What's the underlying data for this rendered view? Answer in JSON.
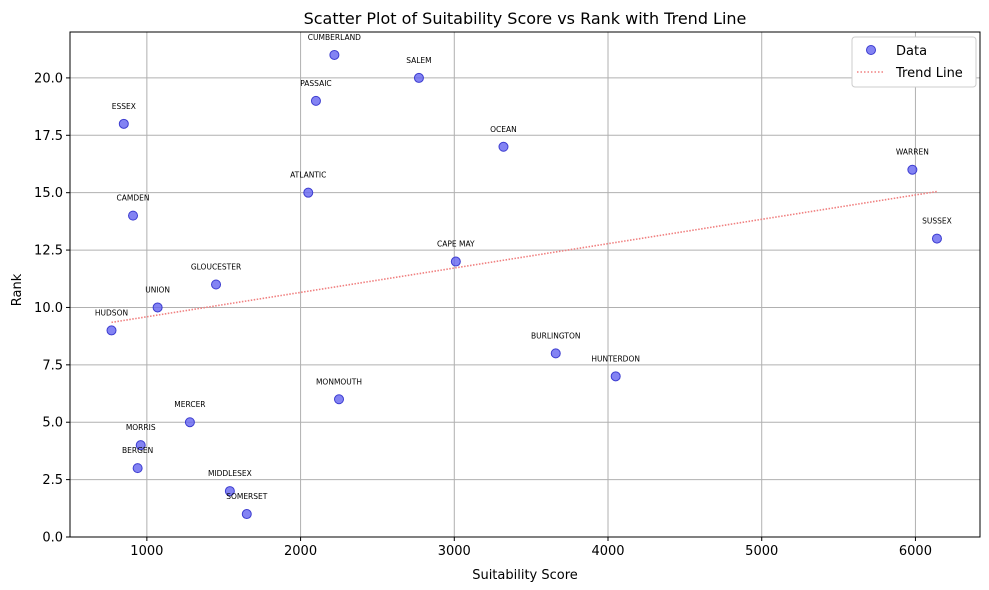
{
  "chart_data": {
    "type": "scatter",
    "title": "Scatter Plot of Suitability Score vs Rank with Trend Line",
    "xlabel": "Suitability Score",
    "ylabel": "Rank",
    "xlim": [
      500,
      6420
    ],
    "ylim": [
      0,
      22
    ],
    "xticks": [
      1000,
      2000,
      3000,
      4000,
      5000,
      6000
    ],
    "yticks": [
      0.0,
      2.5,
      5.0,
      7.5,
      10.0,
      12.5,
      15.0,
      17.5,
      20.0
    ],
    "ytick_labels": [
      "0.0",
      "2.5",
      "5.0",
      "7.5",
      "10.0",
      "12.5",
      "15.0",
      "17.5",
      "20.0"
    ],
    "grid": true,
    "legend_position": "top-right",
    "series": [
      {
        "name": "Data",
        "kind": "scatter",
        "color": "#6464f0",
        "points": [
          {
            "label": "CUMBERLAND",
            "x": 2220,
            "y": 21
          },
          {
            "label": "SALEM",
            "x": 2770,
            "y": 20
          },
          {
            "label": "PASSAIC",
            "x": 2100,
            "y": 19
          },
          {
            "label": "ESSEX",
            "x": 850,
            "y": 18
          },
          {
            "label": "OCEAN",
            "x": 3320,
            "y": 17
          },
          {
            "label": "WARREN",
            "x": 5980,
            "y": 16
          },
          {
            "label": "ATLANTIC",
            "x": 2050,
            "y": 15
          },
          {
            "label": "CAMDEN",
            "x": 910,
            "y": 14
          },
          {
            "label": "SUSSEX",
            "x": 6140,
            "y": 13
          },
          {
            "label": "CAPE MAY",
            "x": 3010,
            "y": 12
          },
          {
            "label": "GLOUCESTER",
            "x": 1450,
            "y": 11
          },
          {
            "label": "UNION",
            "x": 1070,
            "y": 10
          },
          {
            "label": "HUDSON",
            "x": 770,
            "y": 9
          },
          {
            "label": "BURLINGTON",
            "x": 3660,
            "y": 8
          },
          {
            "label": "HUNTERDON",
            "x": 4050,
            "y": 7
          },
          {
            "label": "MONMOUTH",
            "x": 2250,
            "y": 6
          },
          {
            "label": "MERCER",
            "x": 1280,
            "y": 5
          },
          {
            "label": "MORRIS",
            "x": 960,
            "y": 4
          },
          {
            "label": "BERGEN",
            "x": 940,
            "y": 3
          },
          {
            "label": "MIDDLESEX",
            "x": 1540,
            "y": 2
          },
          {
            "label": "SOMERSET",
            "x": 1650,
            "y": 1
          }
        ]
      },
      {
        "name": "Trend Line",
        "kind": "line",
        "color": "#f08080",
        "style": "dotted",
        "x": [
          770,
          6140
        ],
        "y": [
          9.35,
          15.05
        ]
      }
    ]
  }
}
